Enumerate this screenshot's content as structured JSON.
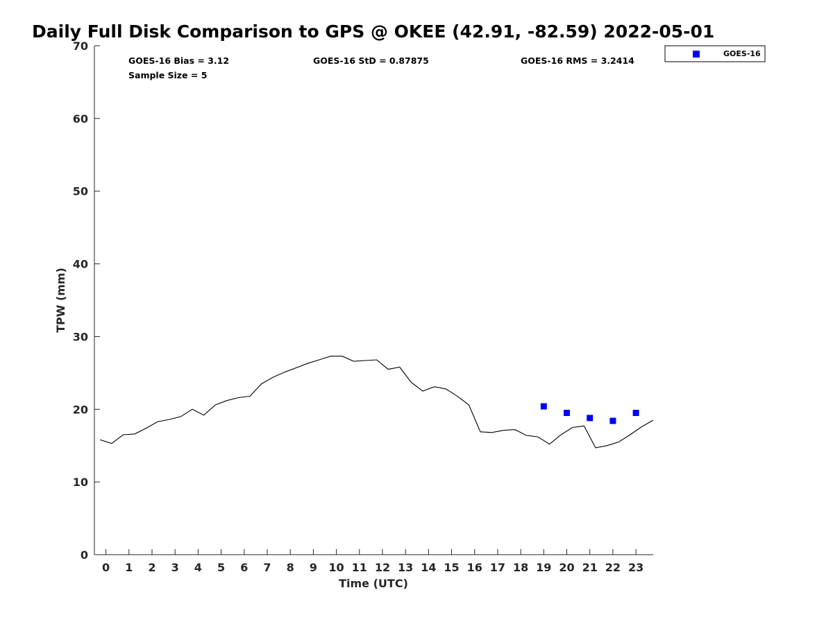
{
  "chart_data": {
    "type": "line",
    "title": "Daily Full Disk Comparison to GPS @ OKEE (42.91, -82.59) 2022-05-01",
    "xlabel": "Time (UTC)",
    "ylabel": "TPW (mm)",
    "xlim": [
      -0.5,
      23.75
    ],
    "ylim": [
      0,
      70
    ],
    "x_ticks": [
      0,
      1,
      2,
      3,
      4,
      5,
      6,
      7,
      8,
      9,
      10,
      11,
      12,
      13,
      14,
      15,
      16,
      17,
      18,
      19,
      20,
      21,
      22,
      23
    ],
    "y_ticks": [
      0,
      10,
      20,
      30,
      40,
      50,
      60,
      70
    ],
    "grid": false,
    "legend_position": "top-right, outside plot",
    "stats": {
      "bias": "GOES-16 Bias = 3.12",
      "std": "GOES-16 StD = 0.87875",
      "rms": "GOES-16 RMS = 3.2414",
      "sample_size": "Sample Size = 5"
    },
    "series": [
      {
        "style": "line",
        "color": "#000000",
        "x": [
          -0.25,
          0.25,
          0.75,
          1.25,
          1.75,
          2.25,
          2.75,
          3.25,
          3.75,
          4.25,
          4.75,
          5.25,
          5.75,
          6.25,
          6.75,
          7.25,
          7.75,
          8.25,
          8.75,
          9.25,
          9.75,
          10.25,
          10.75,
          11.25,
          11.75,
          12.25,
          12.75,
          13.25,
          13.75,
          14.25,
          14.75,
          15.25,
          15.75,
          16.25,
          16.75,
          17.25,
          17.75,
          18.25,
          18.75,
          19.25,
          19.75,
          20.25,
          20.75,
          21.25,
          21.75,
          22.25,
          22.75,
          23.25,
          23.75
        ],
        "values": [
          15.8,
          15.3,
          16.5,
          16.6,
          17.4,
          18.3,
          18.6,
          19.0,
          20.0,
          19.2,
          20.6,
          21.2,
          21.6,
          21.8,
          23.5,
          24.4,
          25.1,
          25.7,
          26.3,
          26.8,
          27.3,
          27.3,
          26.6,
          26.7,
          26.8,
          25.5,
          25.8,
          23.7,
          22.5,
          23.1,
          22.8,
          21.8,
          20.6,
          16.9,
          16.8,
          17.1,
          17.2,
          16.4,
          16.2,
          15.2,
          16.5,
          17.5,
          17.7,
          14.7,
          15.0,
          15.5,
          16.5,
          17.6,
          18.5
        ]
      },
      {
        "name": "GOES-16",
        "style": "square-markers",
        "color": "#0000ff",
        "x": [
          19,
          20,
          21,
          22,
          23
        ],
        "values": [
          20.4,
          19.5,
          18.8,
          18.4,
          19.5
        ]
      }
    ]
  }
}
